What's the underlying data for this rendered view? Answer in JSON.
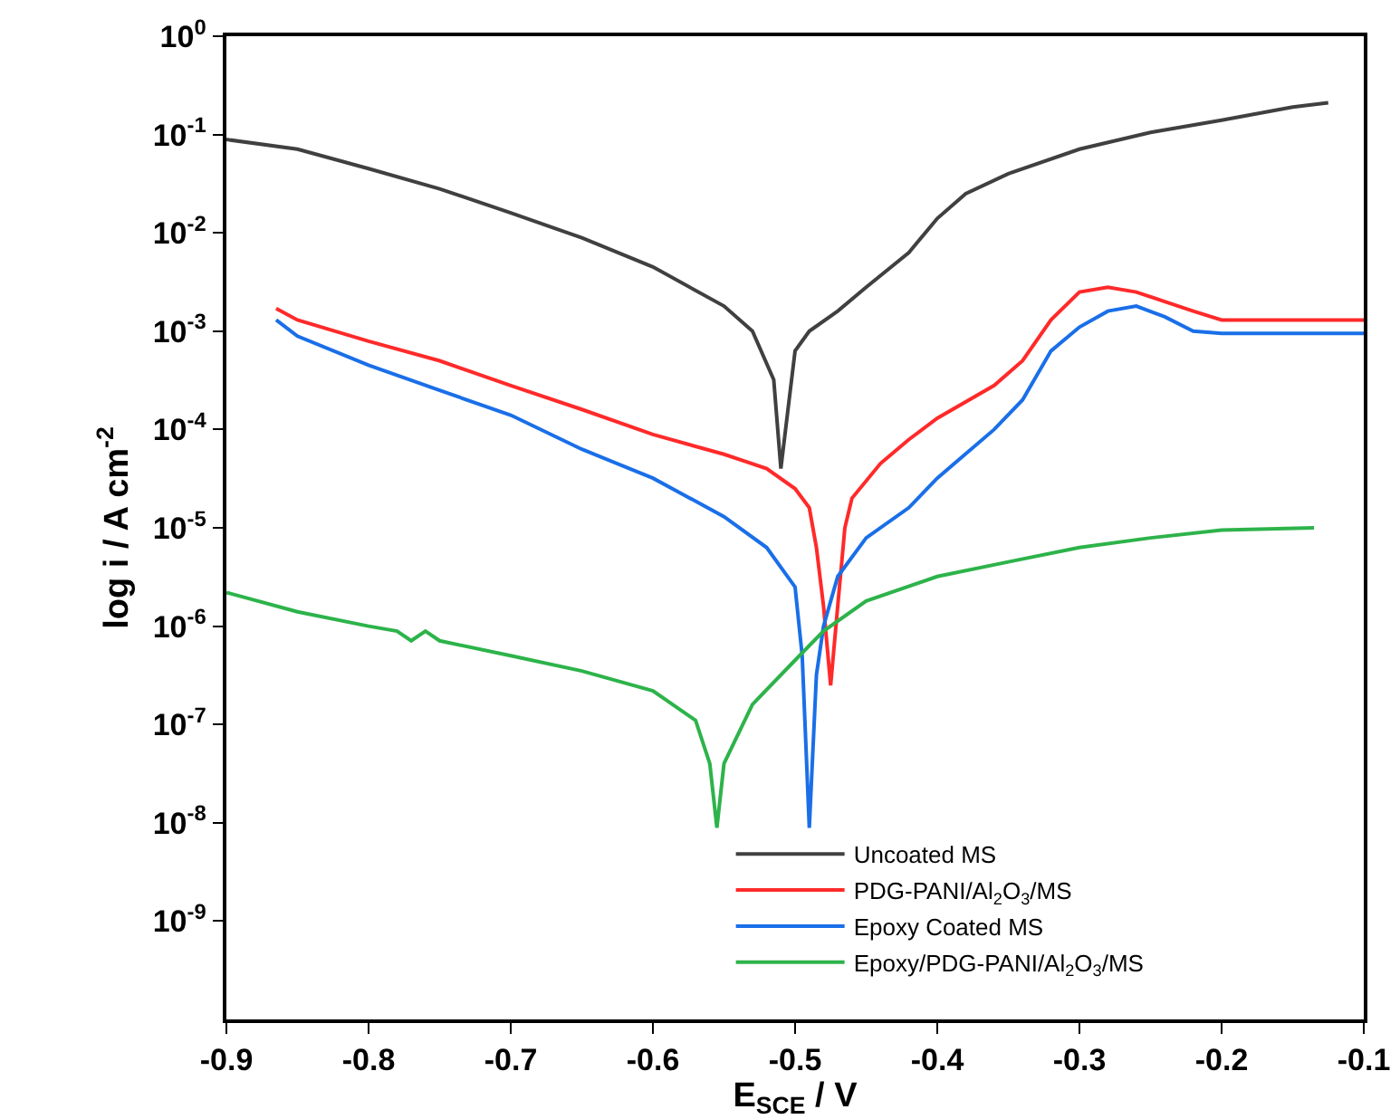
{
  "chart_data": {
    "type": "line",
    "xlabel": "E$_{SCE}$ / V",
    "ylabel": "log i / A cm$^{-2}$",
    "log": "y",
    "grid": false,
    "legend": "bottom right",
    "marker": "none",
    "line_style": "solid",
    "xlim": [
      -0.9,
      -0.1
    ],
    "xticks": [
      -0.9,
      -0.8,
      -0.7,
      -0.6,
      -0.5,
      -0.4,
      -0.3,
      -0.2,
      -0.1
    ],
    "ylim": [
      1e-10,
      1
    ],
    "yticks": [
      {
        "value": 1e-09,
        "label": "10$^{-9}$"
      },
      {
        "value": 1e-08,
        "label": "10$^{-8}$"
      },
      {
        "value": 1e-07,
        "label": "10$^{-7}$"
      },
      {
        "value": 1e-06,
        "label": "10$^{-6}$"
      },
      {
        "value": 1e-05,
        "label": "10$^{-5}$"
      },
      {
        "value": 0.0001,
        "label": "10$^{-4}$"
      },
      {
        "value": 0.001,
        "label": "10$^{-3}$"
      },
      {
        "value": 0.01,
        "label": "10$^{-2}$"
      },
      {
        "value": 0.1,
        "label": "10$^{-1}$"
      },
      {
        "value": 1,
        "label": "10$^{0}$"
      }
    ],
    "series": [
      {
        "name": "Uncoated MS",
        "color": "#404040",
        "x": [
          -0.9,
          -0.85,
          -0.8,
          -0.75,
          -0.7,
          -0.65,
          -0.6,
          -0.55,
          -0.53,
          -0.515,
          -0.51,
          -0.505,
          -0.5,
          -0.49,
          -0.47,
          -0.45,
          -0.42,
          -0.4,
          -0.38,
          -0.35,
          -0.3,
          -0.25,
          -0.2,
          -0.15,
          -0.125
        ],
        "values": [
          0.089,
          0.071,
          0.045,
          0.028,
          0.016,
          0.0089,
          0.0045,
          0.0018,
          0.001,
          0.00032,
          4e-05,
          0.00016,
          0.00063,
          0.001,
          0.0016,
          0.0028,
          0.0063,
          0.014,
          0.025,
          0.04,
          0.071,
          0.105,
          0.14,
          0.19,
          0.21
        ]
      },
      {
        "name": "PDG-PANI/Al$_{2}$O$_{3}$/MS",
        "color": "#ff2a2a",
        "x": [
          -0.865,
          -0.85,
          -0.8,
          -0.75,
          -0.7,
          -0.65,
          -0.6,
          -0.55,
          -0.52,
          -0.5,
          -0.49,
          -0.485,
          -0.48,
          -0.475,
          -0.47,
          -0.465,
          -0.46,
          -0.44,
          -0.42,
          -0.4,
          -0.36,
          -0.34,
          -0.32,
          -0.3,
          -0.28,
          -0.26,
          -0.24,
          -0.22,
          -0.2,
          -0.15,
          -0.1
        ],
        "values": [
          0.0017,
          0.0013,
          0.00079,
          0.0005,
          0.00028,
          0.00016,
          8.9e-05,
          5.6e-05,
          4e-05,
          2.5e-05,
          1.6e-05,
          6.3e-06,
          1.6e-06,
          2.5e-07,
          1.6e-06,
          1e-05,
          2e-05,
          4.5e-05,
          7.9e-05,
          0.00013,
          0.00028,
          0.0005,
          0.0013,
          0.0025,
          0.0028,
          0.0025,
          0.002,
          0.0016,
          0.0013,
          0.0013,
          0.0013
        ]
      },
      {
        "name": "Epoxy Coated MS",
        "color": "#1a6fe8",
        "x": [
          -0.865,
          -0.85,
          -0.8,
          -0.75,
          -0.7,
          -0.65,
          -0.6,
          -0.55,
          -0.52,
          -0.5,
          -0.495,
          -0.49,
          -0.485,
          -0.48,
          -0.47,
          -0.45,
          -0.42,
          -0.4,
          -0.36,
          -0.34,
          -0.32,
          -0.3,
          -0.28,
          -0.26,
          -0.24,
          -0.22,
          -0.2,
          -0.15,
          -0.1
        ],
        "values": [
          0.0013,
          0.00089,
          0.00045,
          0.00025,
          0.00014,
          6.3e-05,
          3.2e-05,
          1.3e-05,
          6.3e-06,
          2.5e-06,
          5e-07,
          8.9e-09,
          3.2e-07,
          1e-06,
          3.2e-06,
          7.9e-06,
          1.6e-05,
          3.2e-05,
          0.0001,
          0.0002,
          0.00063,
          0.0011,
          0.0016,
          0.0018,
          0.0014,
          0.001,
          0.00095,
          0.00095,
          0.00095
        ]
      },
      {
        "name": "Epoxy/PDG-PANI/Al$_{2}$O$_{3}$/MS",
        "color": "#2db34a",
        "x": [
          -0.9,
          -0.85,
          -0.8,
          -0.78,
          -0.77,
          -0.76,
          -0.75,
          -0.7,
          -0.65,
          -0.6,
          -0.57,
          -0.56,
          -0.555,
          -0.55,
          -0.53,
          -0.5,
          -0.48,
          -0.45,
          -0.4,
          -0.35,
          -0.3,
          -0.25,
          -0.2,
          -0.135
        ],
        "values": [
          2.2e-06,
          1.4e-06,
          1e-06,
          8.9e-07,
          7.1e-07,
          8.9e-07,
          7.1e-07,
          5e-07,
          3.5e-07,
          2.2e-07,
          1.1e-07,
          4e-08,
          8.9e-09,
          4e-08,
          1.6e-07,
          4.5e-07,
          8.9e-07,
          1.8e-06,
          3.2e-06,
          4.5e-06,
          6.3e-06,
          7.9e-06,
          9.5e-06,
          1e-05
        ]
      }
    ]
  }
}
